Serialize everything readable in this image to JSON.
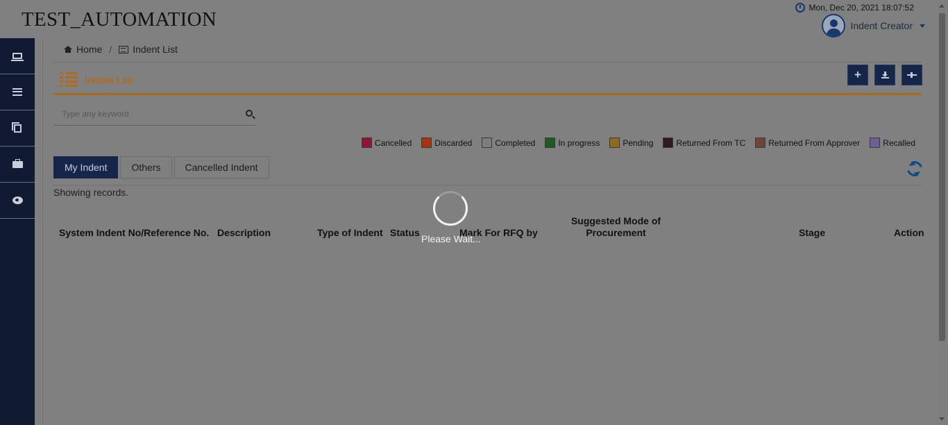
{
  "app": {
    "brand": "TEST_AUTOMATION"
  },
  "header": {
    "datetime": "Mon, Dec 20, 2021 18:07:52",
    "user_role": "Indent Creator"
  },
  "sidebar": {
    "items": [
      {
        "icon": "laptop-icon"
      },
      {
        "icon": "list-icon"
      },
      {
        "icon": "copy-icon"
      },
      {
        "icon": "briefcase-icon"
      },
      {
        "icon": "weibo-icon"
      }
    ]
  },
  "breadcrumb": {
    "home": "Home",
    "current": "Indent List",
    "separator": "/"
  },
  "page": {
    "title": "Indent List"
  },
  "toolbar": {
    "buttons": [
      "add-icon",
      "download-icon",
      "plane-icon"
    ]
  },
  "search": {
    "placeholder": "Type any keyword",
    "value": ""
  },
  "legend": [
    {
      "label": "Cancelled",
      "color": "#8e1634"
    },
    {
      "label": "Discarded",
      "color": "#a8330d"
    },
    {
      "label": "Completed",
      "color": "#7d7d7d"
    },
    {
      "label": "In progress",
      "color": "#1c5a1f"
    },
    {
      "label": "Pending",
      "color": "#8e6b1c"
    },
    {
      "label": "Returned From TC",
      "color": "#2e1a24"
    },
    {
      "label": "Returned From Approver",
      "color": "#6e4538"
    },
    {
      "label": "Recalled",
      "color": "#6e5e95"
    }
  ],
  "tabs": [
    {
      "label": "My Indent",
      "active": true
    },
    {
      "label": "Others",
      "active": false
    },
    {
      "label": "Cancelled Indent",
      "active": false
    }
  ],
  "records": {
    "showing": "Showing records."
  },
  "table": {
    "columns": [
      "System Indent No/Reference No.",
      "Description",
      "Type of Indent",
      "Status",
      "Mark For RFQ by",
      "Suggested Mode of Procurement",
      "Stage",
      "Action"
    ]
  },
  "loader": {
    "text": "Please Wait..."
  }
}
